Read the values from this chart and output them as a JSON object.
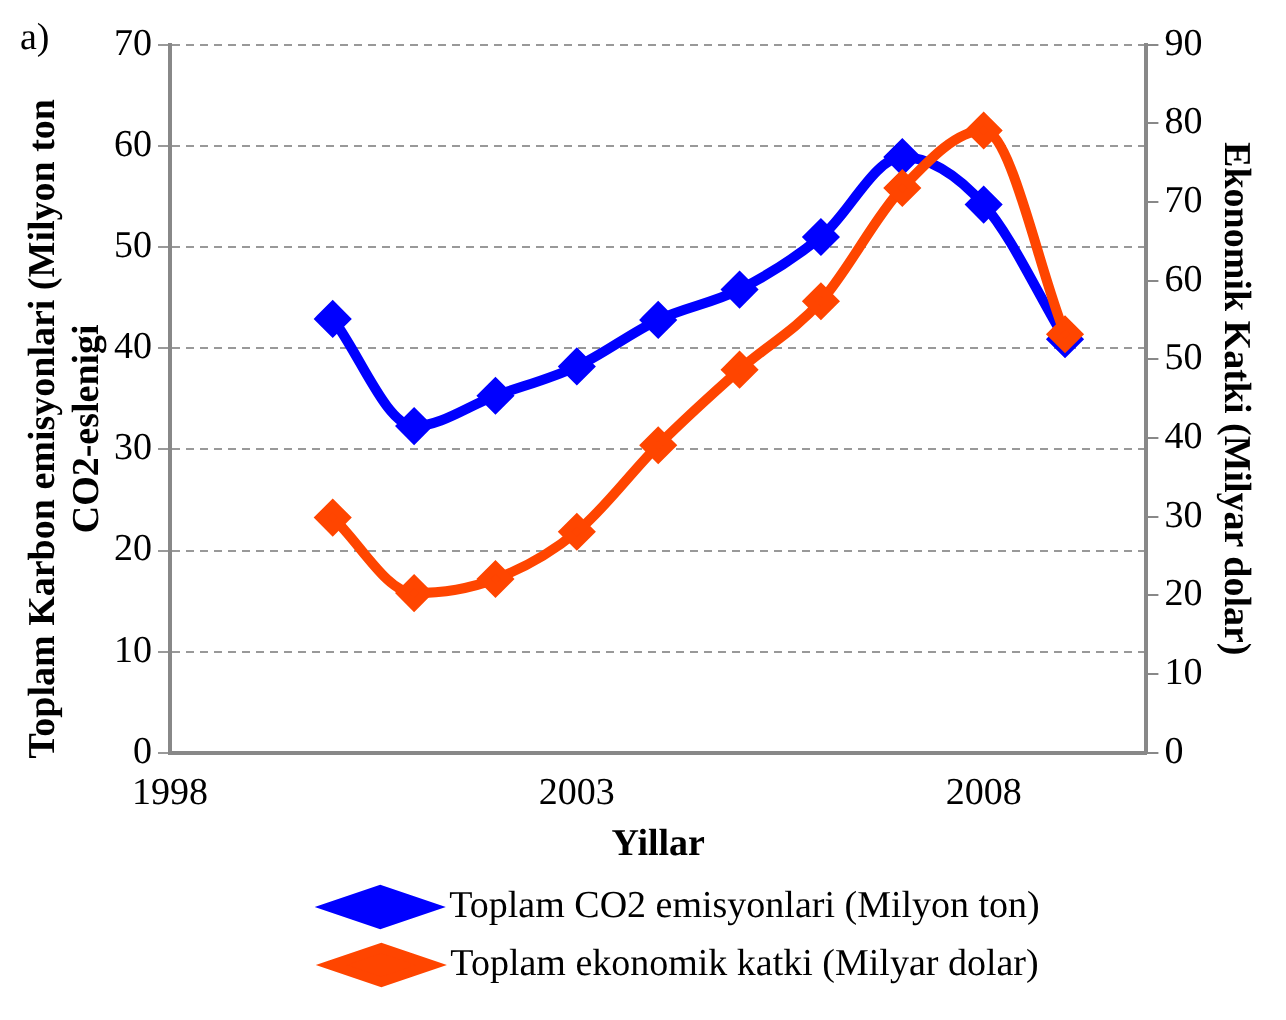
{
  "chart_data": {
    "type": "line",
    "xlabel": "Yillar",
    "ylabel": "Toplam Karbon emisyonlari (Milyon ton CO2-eslenigi",
    "y2label": "Ekonomik Katki (Milyar dolar)",
    "annotations": [
      "a)"
    ],
    "x": [
      2000,
      2001,
      2002,
      2003,
      2004,
      2005,
      2006,
      2007,
      2008,
      2009
    ],
    "series": [
      {
        "name": "Toplam CO2 emisyonlari (Milyon ton)",
        "color": "#0000ff",
        "values": [
          42.9,
          32.3,
          35.3,
          38.2,
          42.8,
          45.8,
          51.0,
          58.9,
          54.2,
          40.9
        ]
      },
      {
        "name": "Toplam ekonomik katki (Milyar dolar)",
        "color": "#ff4500",
        "axis": "y2",
        "values": [
          29.9,
          20.3,
          22.1,
          28.1,
          39.1,
          48.7,
          57.4,
          71.8,
          79.1,
          53.2
        ]
      }
    ],
    "xlim": [
      1998,
      2010
    ],
    "xticks": [
      1998,
      2003,
      2008
    ],
    "ylim": [
      0,
      70
    ],
    "yticks": [
      0,
      10,
      20,
      30,
      40,
      50,
      60,
      70
    ],
    "y2lim": [
      0,
      90
    ],
    "y2ticks": [
      0,
      10,
      20,
      30,
      40,
      50,
      60,
      70,
      80,
      90
    ],
    "grid": "y",
    "legend": "bottom",
    "marker": "diamond",
    "line_style": "solid"
  }
}
